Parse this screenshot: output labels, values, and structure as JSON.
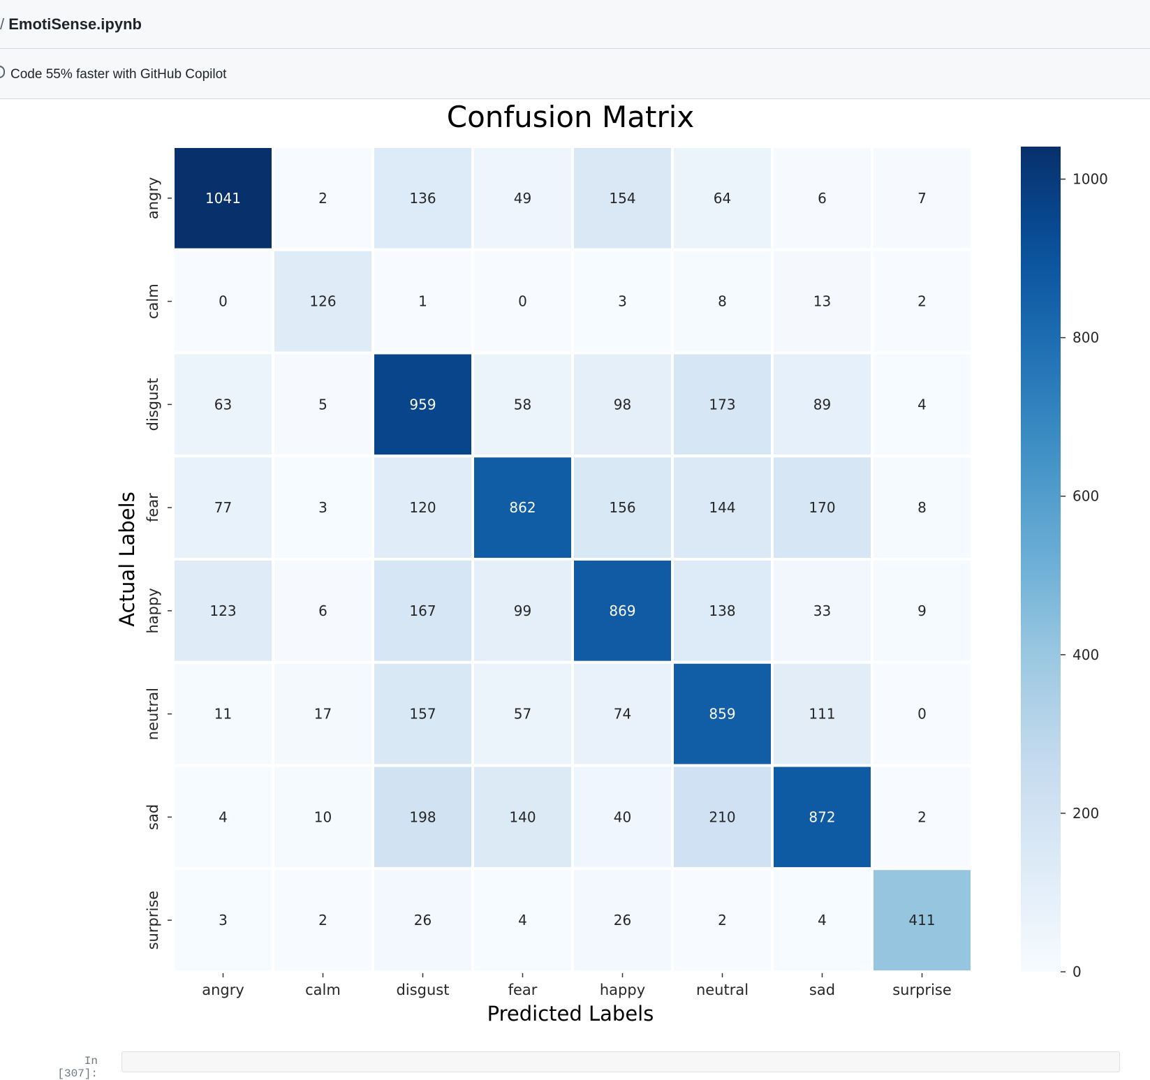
{
  "header": {
    "separator": "/",
    "file_name": "EmotiSense.ipynb"
  },
  "promo": {
    "icon": "copilot-icon",
    "text": "Code 55% faster with GitHub Copilot"
  },
  "chart_data": {
    "type": "heatmap",
    "title": "Confusion Matrix",
    "xlabel": "Predicted Labels",
    "ylabel": "Actual Labels",
    "x_categories": [
      "angry",
      "calm",
      "disgust",
      "fear",
      "happy",
      "neutral",
      "sad",
      "surprise"
    ],
    "y_categories": [
      "angry",
      "calm",
      "disgust",
      "fear",
      "happy",
      "neutral",
      "sad",
      "surprise"
    ],
    "values": [
      [
        1041,
        2,
        136,
        49,
        154,
        64,
        6,
        7
      ],
      [
        0,
        126,
        1,
        0,
        3,
        8,
        13,
        2
      ],
      [
        63,
        5,
        959,
        58,
        98,
        173,
        89,
        4
      ],
      [
        77,
        3,
        120,
        862,
        156,
        144,
        170,
        8
      ],
      [
        123,
        6,
        167,
        99,
        869,
        138,
        33,
        9
      ],
      [
        11,
        17,
        157,
        57,
        74,
        859,
        111,
        0
      ],
      [
        4,
        10,
        198,
        140,
        40,
        210,
        872,
        2
      ],
      [
        3,
        2,
        26,
        4,
        26,
        2,
        4,
        411
      ]
    ],
    "colormap": "Blues",
    "colorbar": {
      "range": [
        0,
        1041
      ],
      "ticks": [
        0,
        200,
        400,
        600,
        800,
        1000
      ]
    },
    "light_text_color": "#ffffff",
    "dark_text_color": "#262626"
  },
  "next_cell": {
    "prompt": "In [307]:"
  }
}
